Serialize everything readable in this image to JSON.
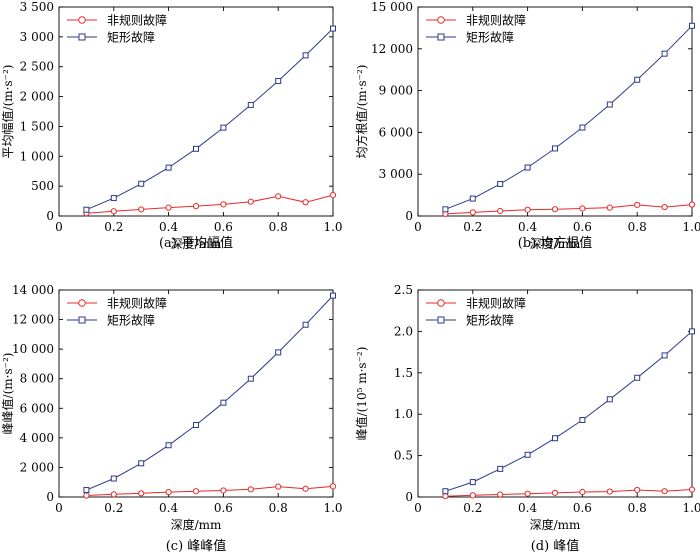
{
  "chart_data": [
    {
      "type": "line",
      "caption": "(a) 平均幅值",
      "xlabel": "深度/mm",
      "ylabel": "平均幅值/(m·s⁻²)",
      "xlim": [
        0,
        1.0
      ],
      "ylim": [
        0,
        3500
      ],
      "xticks": [
        0,
        0.2,
        0.4,
        0.6,
        0.8,
        1.0
      ],
      "xtick_labels": [
        "0",
        "0.2",
        "0.4",
        "0.6",
        "0.8",
        "1.0"
      ],
      "yticks": [
        0,
        500,
        1000,
        1500,
        2000,
        2500,
        3000,
        3500
      ],
      "ytick_labels": [
        "0",
        "500",
        "1 000",
        "1 500",
        "2 000",
        "2 500",
        "3 000",
        "3 500"
      ],
      "legend_position": "top-left",
      "x": [
        0.1,
        0.2,
        0.3,
        0.4,
        0.5,
        0.6,
        0.7,
        0.8,
        0.9,
        1.0
      ],
      "series": [
        {
          "name": "非规则故障",
          "marker": "circle",
          "color": "#e8282a",
          "values": [
            45,
            80,
            110,
            140,
            165,
            195,
            240,
            330,
            230,
            350
          ]
        },
        {
          "name": "矩形故障",
          "marker": "square",
          "color": "#2c3a8c",
          "values": [
            105,
            300,
            540,
            810,
            1125,
            1480,
            1860,
            2260,
            2690,
            3140
          ]
        }
      ]
    },
    {
      "type": "line",
      "caption": "(b) 均方根值",
      "xlabel": "深度/mm",
      "ylabel": "均方根值/(m·s⁻²)",
      "xlim": [
        0,
        1.0
      ],
      "ylim": [
        0,
        15000
      ],
      "xticks": [
        0,
        0.2,
        0.4,
        0.6,
        0.8,
        1.0
      ],
      "xtick_labels": [
        "0",
        "0.2",
        "0.4",
        "0.6",
        "0.8",
        "1.0"
      ],
      "yticks": [
        0,
        3000,
        6000,
        9000,
        12000,
        15000
      ],
      "ytick_labels": [
        "0",
        "3 000",
        "6 000",
        "9 000",
        "12 000",
        "15 000"
      ],
      "legend_position": "top-left",
      "x": [
        0.1,
        0.2,
        0.3,
        0.4,
        0.5,
        0.6,
        0.7,
        0.8,
        0.9,
        1.0
      ],
      "series": [
        {
          "name": "非规则故障",
          "marker": "circle",
          "color": "#e8282a",
          "values": [
            150,
            260,
            360,
            450,
            490,
            540,
            600,
            800,
            640,
            820
          ]
        },
        {
          "name": "矩形故障",
          "marker": "square",
          "color": "#2c3a8c",
          "values": [
            480,
            1250,
            2300,
            3480,
            4850,
            6350,
            8000,
            9780,
            11650,
            13650
          ]
        }
      ]
    },
    {
      "type": "line",
      "caption": "(c) 峰峰值",
      "xlabel": "深度/mm",
      "ylabel": "峰峰值/(m·s⁻²)",
      "xlim": [
        0,
        1.0
      ],
      "ylim": [
        0,
        14000
      ],
      "xticks": [
        0,
        0.2,
        0.4,
        0.6,
        0.8,
        1.0
      ],
      "xtick_labels": [
        "0",
        "0.2",
        "0.4",
        "0.6",
        "0.8",
        "1.0"
      ],
      "yticks": [
        0,
        2000,
        4000,
        6000,
        8000,
        10000,
        12000,
        14000
      ],
      "ytick_labels": [
        "0",
        "2 000",
        "4 000",
        "6 000",
        "8 000",
        "10 000",
        "12 000",
        "14 000"
      ],
      "legend_position": "top-left",
      "x": [
        0.1,
        0.2,
        0.3,
        0.4,
        0.5,
        0.6,
        0.7,
        0.8,
        0.9,
        1.0
      ],
      "series": [
        {
          "name": "非规则故障",
          "marker": "circle",
          "color": "#e8282a",
          "values": [
            100,
            180,
            250,
            330,
            390,
            440,
            520,
            700,
            560,
            720
          ]
        },
        {
          "name": "矩形故障",
          "marker": "square",
          "color": "#2c3a8c",
          "values": [
            470,
            1250,
            2280,
            3500,
            4870,
            6380,
            8000,
            9780,
            11650,
            13620
          ]
        }
      ]
    },
    {
      "type": "line",
      "caption": "(d) 峰值",
      "xlabel": "深度/mm",
      "ylabel": "峰值/(10⁵ m·s⁻²)",
      "xlim": [
        0,
        1.0
      ],
      "ylim": [
        0,
        2.5
      ],
      "xticks": [
        0,
        0.2,
        0.4,
        0.6,
        0.8,
        1.0
      ],
      "xtick_labels": [
        "0",
        "0.2",
        "0.4",
        "0.6",
        "0.8",
        "1.0"
      ],
      "yticks": [
        0,
        0.5,
        1.0,
        1.5,
        2.0,
        2.5
      ],
      "ytick_labels": [
        "0",
        "0.5",
        "1.0",
        "1.5",
        "2.0",
        "2.5"
      ],
      "legend_position": "top-left",
      "x": [
        0.1,
        0.2,
        0.3,
        0.4,
        0.5,
        0.6,
        0.7,
        0.8,
        0.9,
        1.0
      ],
      "series": [
        {
          "name": "非规则故障",
          "marker": "circle",
          "color": "#e8282a",
          "values": [
            0.01,
            0.02,
            0.03,
            0.04,
            0.05,
            0.06,
            0.065,
            0.085,
            0.07,
            0.09
          ]
        },
        {
          "name": "矩形故障",
          "marker": "square",
          "color": "#2c3a8c",
          "values": [
            0.07,
            0.18,
            0.34,
            0.51,
            0.71,
            0.93,
            1.18,
            1.44,
            1.71,
            2.0
          ]
        }
      ]
    }
  ]
}
